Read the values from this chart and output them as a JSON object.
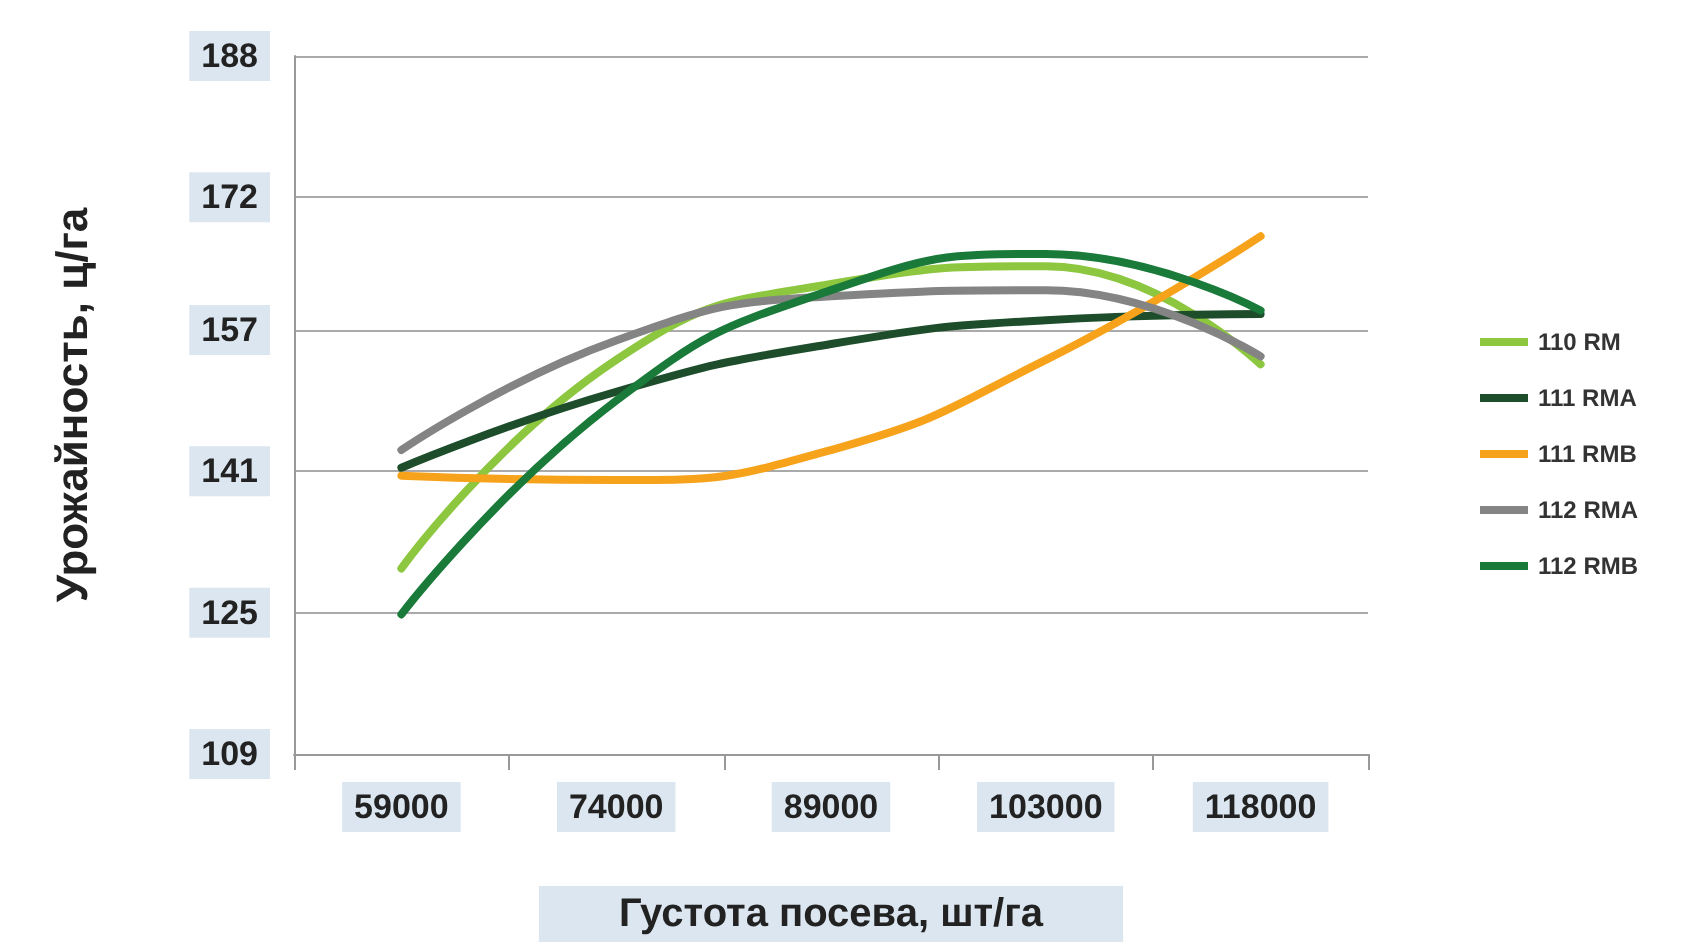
{
  "chart_data": {
    "type": "line",
    "xlabel": "Густота посева, шт/га",
    "ylabel": "Урожайность, ц/га",
    "categories": [
      "59000",
      "74000",
      "89000",
      "103000",
      "118000"
    ],
    "series": [
      {
        "name": "110 RM",
        "color": "#8dc63f",
        "values": [
          130,
          153.6,
          162.2,
          164.2,
          153.1
        ]
      },
      {
        "name": "111 RMA",
        "color": "#1e4d2b",
        "values": [
          141.4,
          150,
          155.4,
          158.1,
          158.8
        ]
      },
      {
        "name": "111 RMB",
        "color": "#f7a21b",
        "values": [
          140.5,
          140,
          143.4,
          153.6,
          167.6
        ]
      },
      {
        "name": "112 RMA",
        "color": "#848484",
        "values": [
          143.4,
          155.8,
          160.8,
          161.5,
          154
        ]
      },
      {
        "name": "112 RMB",
        "color": "#1a7a3a",
        "values": [
          124.8,
          149,
          161.5,
          165.6,
          159.2
        ]
      }
    ],
    "ylim": [
      109,
      188
    ],
    "yticks": [
      109,
      125,
      141,
      157,
      172,
      188
    ],
    "grid": "y",
    "legend": "right"
  }
}
